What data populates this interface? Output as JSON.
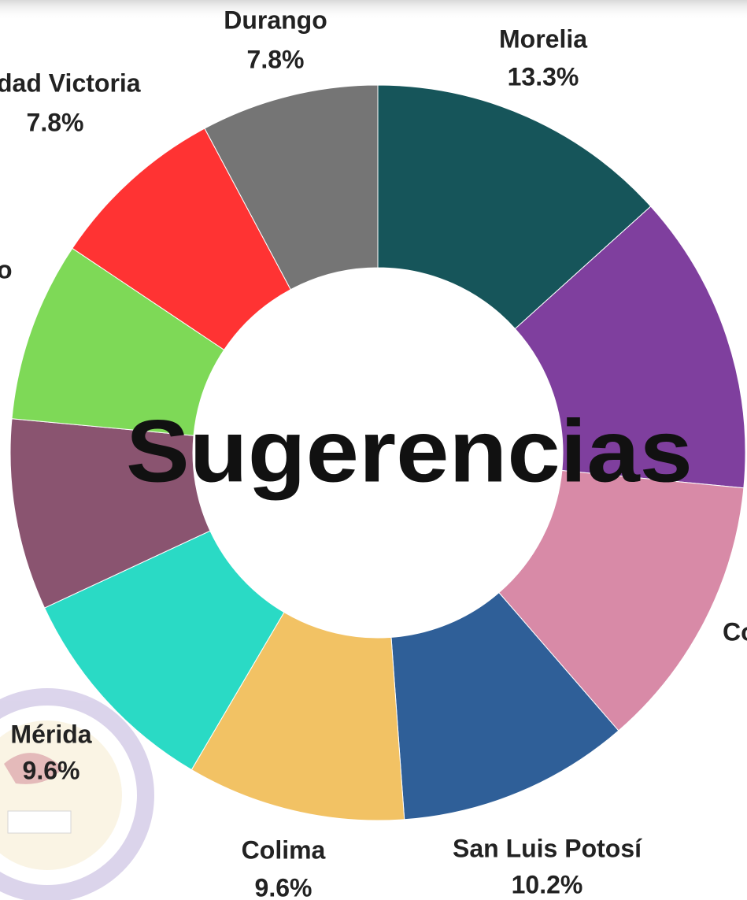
{
  "chart_data": {
    "type": "donut",
    "title": "Sugerencias",
    "categories": [
      "Morelia",
      null,
      "Co",
      "San Luis Potosí",
      "Colima",
      "Mérida",
      null,
      "o",
      "dad Victoria",
      "Durango"
    ],
    "values": [
      13.3,
      13.2,
      12.1,
      10.2,
      9.6,
      9.6,
      8.4,
      7.9,
      7.8,
      7.8
    ],
    "value_labels": [
      "13.3%",
      null,
      null,
      "10.2%",
      "9.6%",
      "9.6%",
      null,
      null,
      "7.8%",
      "7.8%"
    ],
    "colors": [
      "#16555a",
      "#7f3f9e",
      "#d88aa7",
      "#2f5f98",
      "#f2c264",
      "#2adac5",
      "#8a5470",
      "#7ed957",
      "#ff3333",
      "#757575"
    ]
  }
}
